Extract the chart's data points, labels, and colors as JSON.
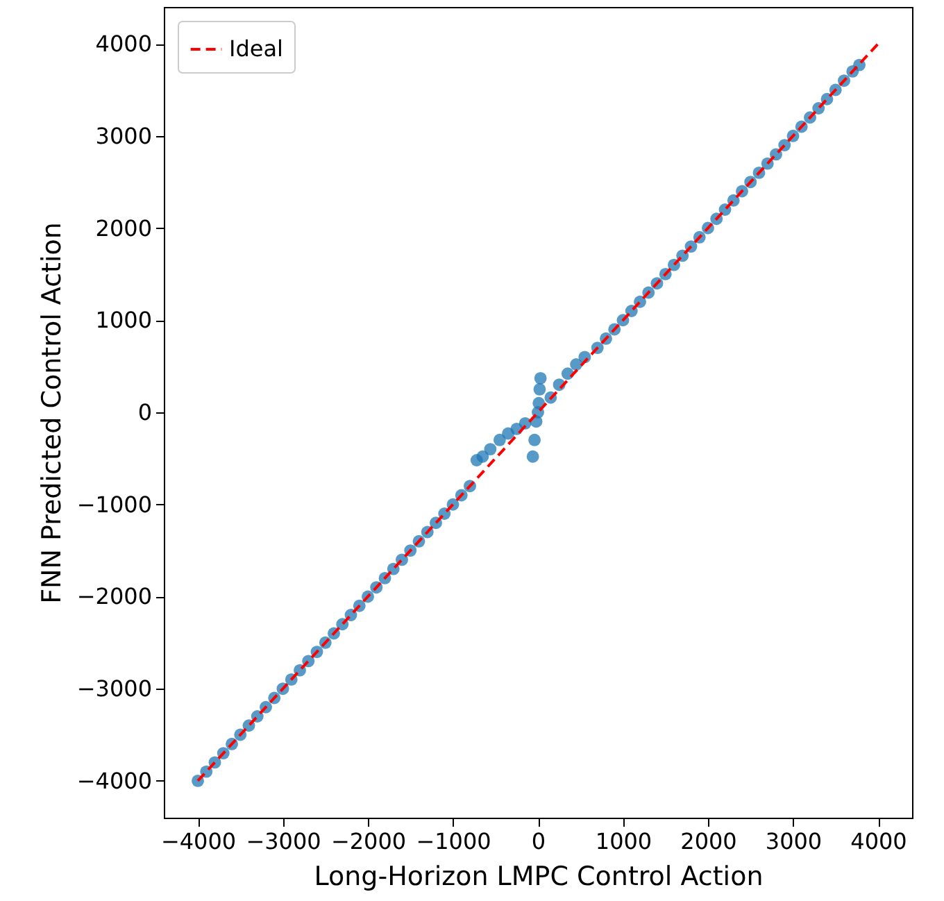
{
  "chart_data": {
    "type": "scatter",
    "xlabel": "Long-Horizon LMPC Control Action",
    "ylabel": "FNN Predicted Control Action",
    "xlim": [
      -4400,
      4400
    ],
    "ylim": [
      -4400,
      4400
    ],
    "xticks": [
      {
        "value": -4000,
        "label": "−4000"
      },
      {
        "value": -3000,
        "label": "−3000"
      },
      {
        "value": -2000,
        "label": "−2000"
      },
      {
        "value": -1000,
        "label": "−1000"
      },
      0,
      1000,
      2000,
      3000,
      4000
    ],
    "yticks": [
      {
        "value": -4000,
        "label": "−4000"
      },
      {
        "value": -3000,
        "label": "−3000"
      },
      {
        "value": -2000,
        "label": "−2000"
      },
      {
        "value": -1000,
        "label": "−1000"
      },
      0,
      1000,
      2000,
      3000,
      4000
    ],
    "grid": false,
    "legend": "top left",
    "series": [
      {
        "marker": "circle",
        "color": "#1f77b4",
        "x": [
          -4000,
          -3900,
          -3800,
          -3700,
          -3600,
          -3500,
          -3400,
          -3300,
          -3200,
          -3100,
          -3000,
          -2900,
          -2800,
          -2700,
          -2600,
          -2500,
          -2400,
          -2300,
          -2200,
          -2100,
          -2000,
          -1900,
          -1800,
          -1700,
          -1600,
          -1500,
          -1400,
          -1300,
          -1200,
          -1100,
          -1000,
          -900,
          -800,
          -720,
          -650,
          -560,
          -450,
          -350,
          -250,
          -150,
          -60,
          -40,
          -20,
          0,
          10,
          20,
          30,
          150,
          250,
          350,
          450,
          550,
          700,
          800,
          900,
          1000,
          1100,
          1200,
          1300,
          1400,
          1500,
          1600,
          1700,
          1800,
          1900,
          2000,
          2100,
          2200,
          2300,
          2400,
          2500,
          2600,
          2700,
          2800,
          2900,
          3000,
          3100,
          3200,
          3300,
          3400,
          3500,
          3600,
          3700,
          3780
        ],
        "values": [
          -4000,
          -3900,
          -3800,
          -3700,
          -3600,
          -3500,
          -3400,
          -3300,
          -3200,
          -3100,
          -3000,
          -2900,
          -2800,
          -2700,
          -2600,
          -2500,
          -2400,
          -2300,
          -2200,
          -2100,
          -2000,
          -1900,
          -1800,
          -1700,
          -1600,
          -1500,
          -1400,
          -1300,
          -1200,
          -1100,
          -1000,
          -900,
          -800,
          -520,
          -480,
          -400,
          -300,
          -230,
          -180,
          -120,
          -480,
          -300,
          -100,
          0,
          100,
          250,
          370,
          160,
          300,
          420,
          520,
          600,
          700,
          800,
          900,
          1000,
          1100,
          1200,
          1300,
          1400,
          1500,
          1600,
          1700,
          1800,
          1900,
          2000,
          2100,
          2200,
          2300,
          2400,
          2500,
          2600,
          2700,
          2800,
          2900,
          3000,
          3100,
          3200,
          3300,
          3400,
          3500,
          3600,
          3700,
          3770
        ]
      },
      {
        "type": "line",
        "name": "Ideal",
        "color": "#ff0000",
        "line_style": "dashed",
        "x": [
          -4000,
          4000
        ],
        "values": [
          -4000,
          4000
        ]
      }
    ]
  }
}
